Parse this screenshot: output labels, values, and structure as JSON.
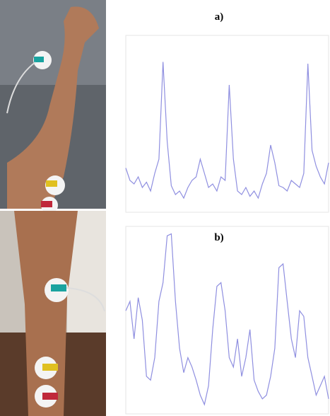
{
  "chart_data": [
    {
      "type": "line",
      "title": "a)",
      "color": "#8f8fe0",
      "ylim": [
        0,
        100
      ],
      "values": [
        25,
        18,
        16,
        20,
        14,
        17,
        12,
        22,
        30,
        85,
        40,
        15,
        10,
        12,
        8,
        14,
        18,
        20,
        30,
        22,
        14,
        16,
        12,
        20,
        18,
        72,
        30,
        12,
        10,
        14,
        9,
        12,
        8,
        16,
        22,
        38,
        28,
        15,
        14,
        12,
        18,
        16,
        14,
        22,
        84,
        35,
        26,
        20,
        16,
        28
      ]
    },
    {
      "type": "line",
      "title": "b)",
      "color": "#8f8fe0",
      "ylim": [
        0,
        100
      ],
      "values": [
        55,
        60,
        40,
        62,
        50,
        20,
        18,
        30,
        60,
        70,
        95,
        96,
        60,
        35,
        22,
        30,
        25,
        18,
        10,
        5,
        15,
        45,
        68,
        70,
        55,
        30,
        25,
        40,
        20,
        30,
        45,
        18,
        12,
        8,
        10,
        20,
        35,
        78,
        80,
        60,
        40,
        30,
        55,
        52,
        30,
        20,
        10,
        15,
        20,
        8
      ]
    }
  ]
}
